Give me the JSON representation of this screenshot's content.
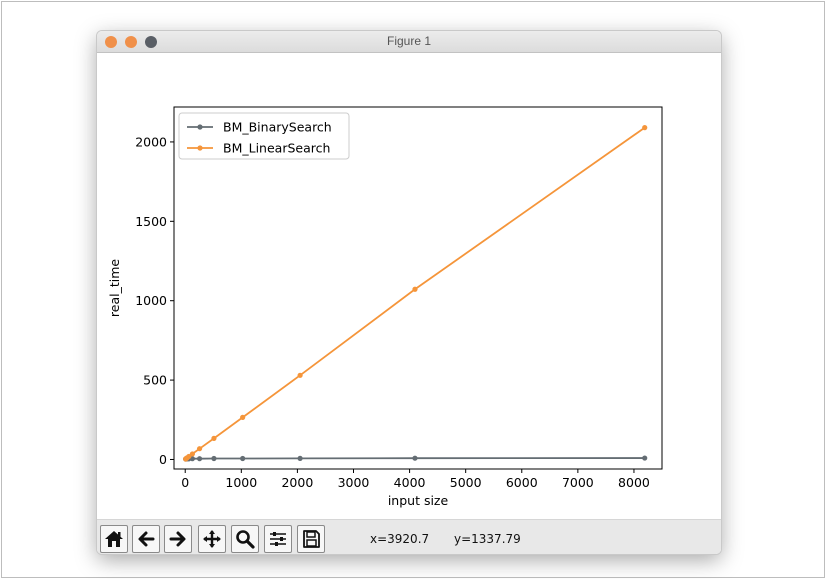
{
  "window": {
    "title": "Figure 1"
  },
  "toolbar": {
    "buttons": [
      "home-icon",
      "back-icon",
      "forward-icon",
      "pan-icon",
      "zoom-icon",
      "configure-subplots-icon",
      "save-icon"
    ],
    "coord_x": "x=3920.7",
    "coord_y": "y=1337.79"
  },
  "chart_data": {
    "type": "line",
    "title": "",
    "xlabel": "input size",
    "ylabel": "real_time",
    "xlim": [
      -200,
      8500
    ],
    "ylim": [
      -60,
      2220
    ],
    "x_ticks": [
      0,
      1000,
      2000,
      3000,
      4000,
      5000,
      6000,
      7000,
      8000
    ],
    "y_ticks": [
      0,
      500,
      1000,
      1500,
      2000
    ],
    "grid": false,
    "legend_position": "upper-left",
    "series": [
      {
        "name": "BM_BinarySearch",
        "color": "#646d73",
        "x": [
          8,
          16,
          32,
          64,
          128,
          256,
          512,
          1024,
          2048,
          4096,
          8192
        ],
        "y": [
          3,
          3,
          4,
          4,
          5,
          5,
          6,
          6,
          7,
          8,
          9
        ]
      },
      {
        "name": "BM_LinearSearch",
        "color": "#f5953a",
        "x": [
          8,
          16,
          32,
          64,
          128,
          256,
          512,
          1024,
          2048,
          4096,
          8192
        ],
        "y": [
          3,
          6,
          10,
          19,
          35,
          68,
          133,
          265,
          530,
          1072,
          2090
        ]
      }
    ]
  }
}
